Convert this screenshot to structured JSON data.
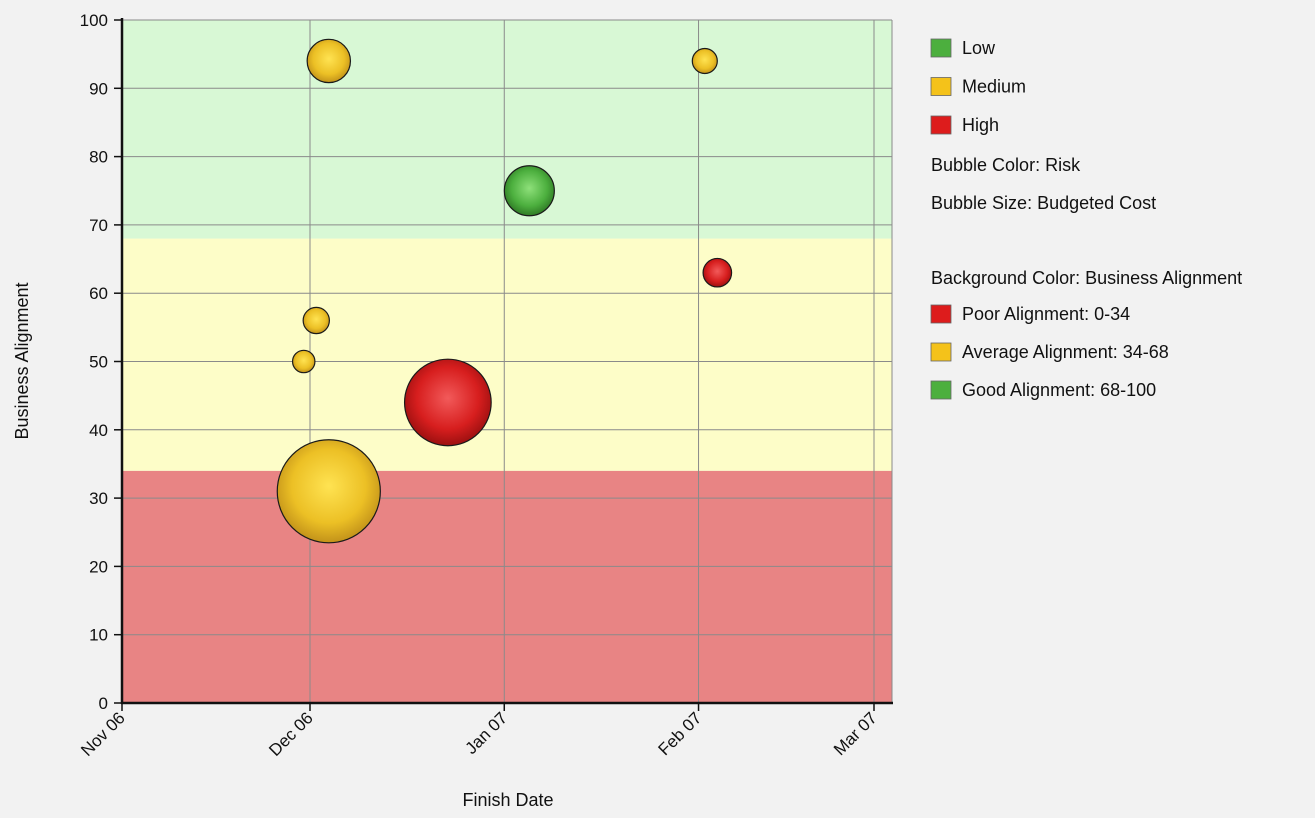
{
  "chart_data": {
    "type": "bubble",
    "title": "",
    "xlabel": "Finish Date",
    "ylabel": "Business Alignment",
    "ylim": [
      0,
      100
    ],
    "yticks": [
      0,
      10,
      20,
      30,
      40,
      50,
      60,
      70,
      80,
      90,
      100
    ],
    "xlim": [
      "2006-11-01",
      "2007-03-10"
    ],
    "xticks": [
      {
        "label": "Nov 06",
        "date": "2006-11-01"
      },
      {
        "label": "Dec 06",
        "date": "2006-12-01"
      },
      {
        "label": "Jan 07",
        "date": "2007-01-01"
      },
      {
        "label": "Feb 07",
        "date": "2007-02-01"
      },
      {
        "label": "Mar 07",
        "date": "2007-03-01"
      }
    ],
    "grid": true,
    "legend_position": "right",
    "risk_colors": {
      "Low": "#4caf3e",
      "Medium": "#f4c21a",
      "High": "#dd1c1c"
    },
    "bands": [
      {
        "from": 0,
        "to": 34,
        "color": "#e88484"
      },
      {
        "from": 34,
        "to": 68,
        "color": "#fdfdc8"
      },
      {
        "from": 68,
        "to": 100,
        "color": "#d8f8d5"
      }
    ],
    "points": [
      {
        "date": "2006-12-04",
        "y": 94,
        "risk": "Medium",
        "size": 3
      },
      {
        "date": "2007-02-02",
        "y": 94,
        "risk": "Medium",
        "size": 1
      },
      {
        "date": "2007-01-05",
        "y": 75,
        "risk": "Low",
        "size": 4
      },
      {
        "date": "2007-02-04",
        "y": 63,
        "risk": "High",
        "size": 1.3
      },
      {
        "date": "2006-12-02",
        "y": 56,
        "risk": "Medium",
        "size": 1.1
      },
      {
        "date": "2006-11-30",
        "y": 50,
        "risk": "Medium",
        "size": 0.8
      },
      {
        "date": "2006-12-23",
        "y": 44,
        "risk": "High",
        "size": 12
      },
      {
        "date": "2006-12-04",
        "y": 31,
        "risk": "Medium",
        "size": 17
      }
    ]
  },
  "legend": {
    "risk_items": [
      {
        "label": "Low",
        "color": "#4caf3e"
      },
      {
        "label": "Medium",
        "color": "#f4c21a"
      },
      {
        "label": "High",
        "color": "#dd1c1c"
      }
    ],
    "bubble_color_note": "Bubble Color: Risk",
    "bubble_size_note": "Bubble Size: Budgeted Cost",
    "background_title": "Background Color: Business Alignment",
    "alignment_items": [
      {
        "label": "Poor Alignment: 0-34",
        "color": "#dd1c1c"
      },
      {
        "label": "Average Alignment: 34-68",
        "color": "#f4c21a"
      },
      {
        "label": "Good Alignment: 68-100",
        "color": "#4caf3e"
      }
    ]
  }
}
